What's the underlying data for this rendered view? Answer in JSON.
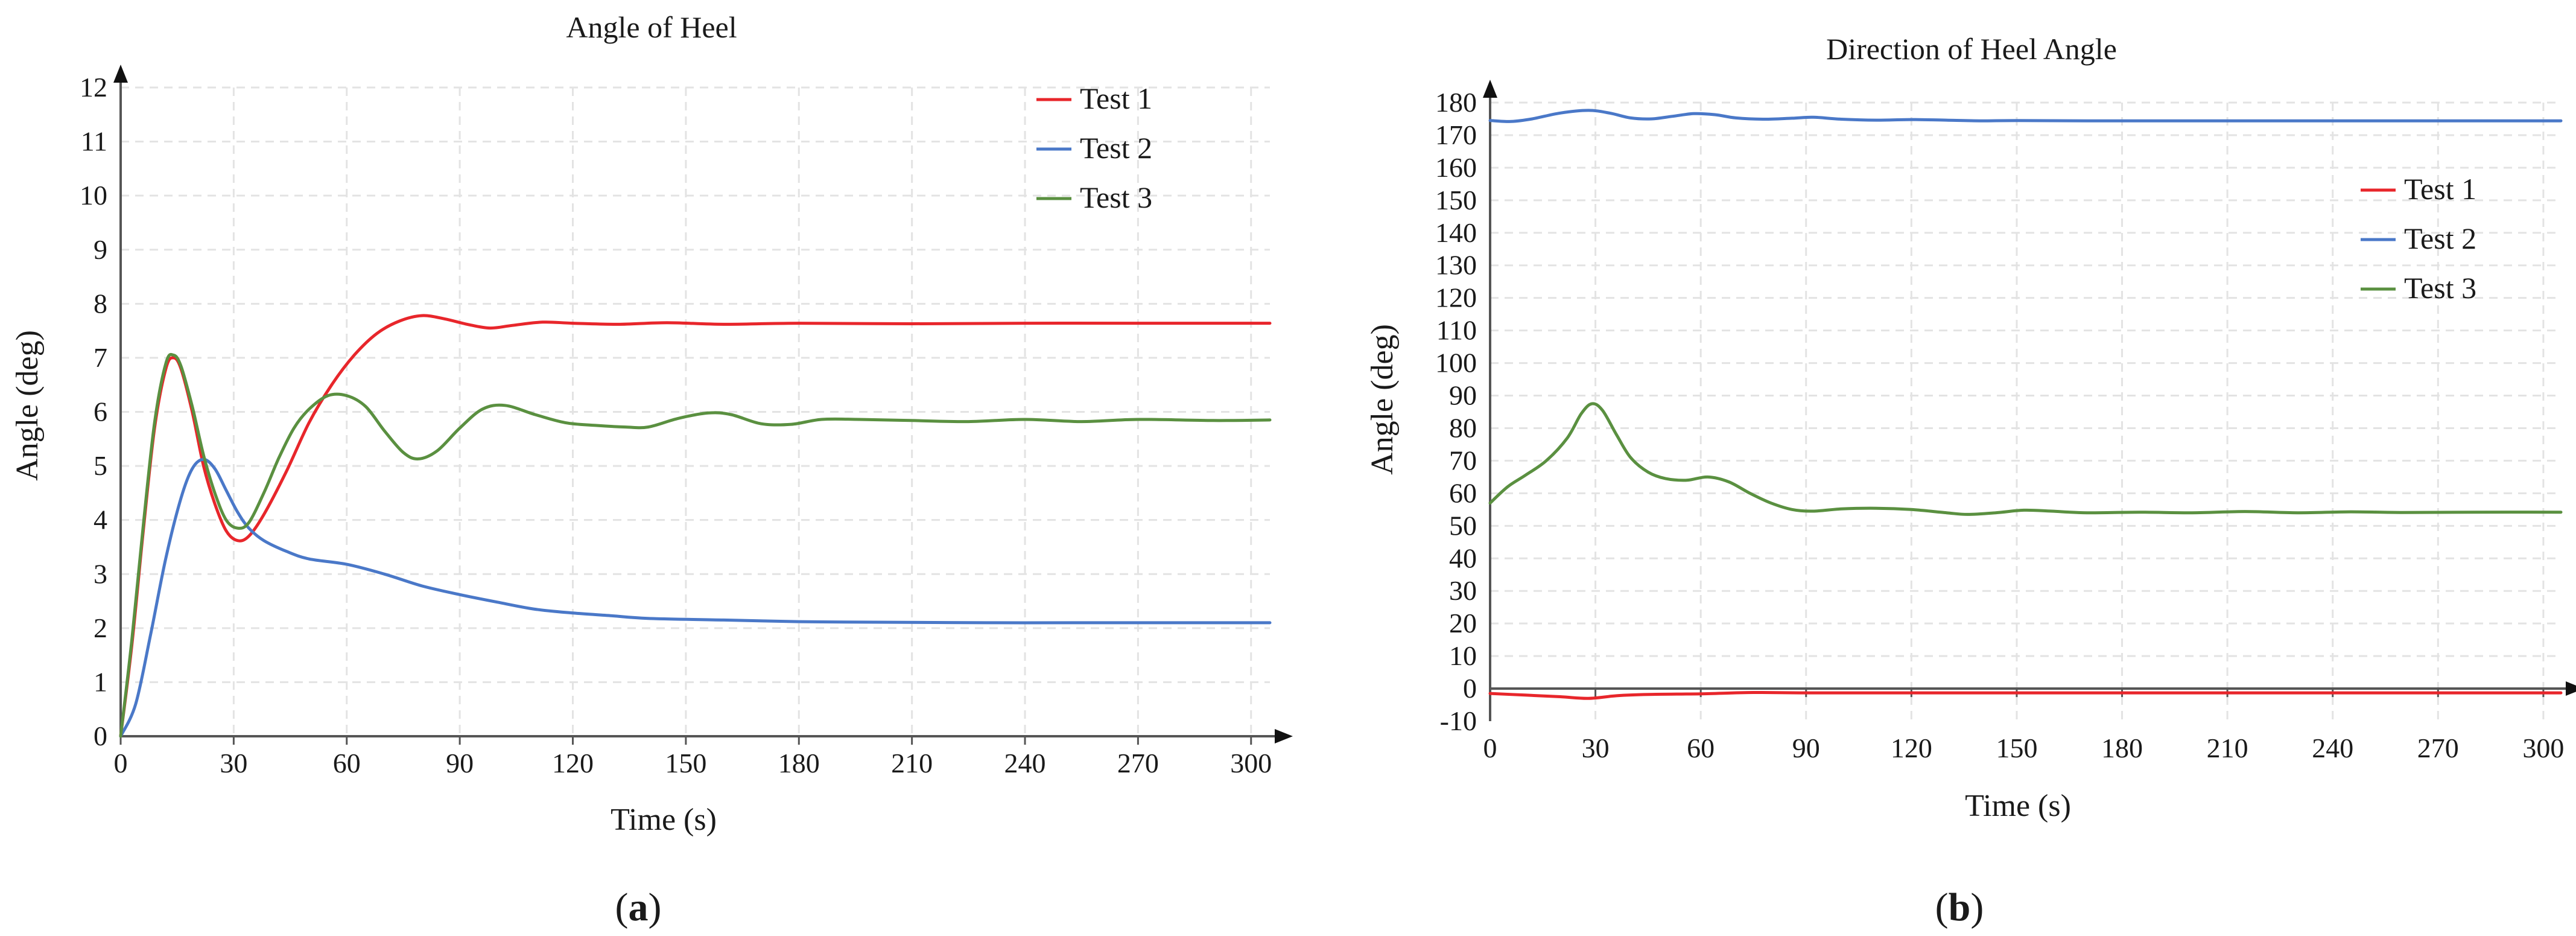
{
  "chart_data": [
    {
      "type": "line",
      "title": "Angle of Heel",
      "xlabel": "Time (s)",
      "ylabel": "Angle (deg)",
      "xlim": [
        0,
        305
      ],
      "ylim": [
        0,
        12
      ],
      "xticks": [
        0,
        30,
        60,
        90,
        120,
        150,
        180,
        210,
        240,
        270,
        300
      ],
      "yticks": [
        0,
        1,
        2,
        3,
        4,
        5,
        6,
        7,
        8,
        9,
        10,
        11,
        12
      ],
      "grid": true,
      "legend_position": "top-right",
      "panel_label": {
        "open": "(",
        "letter": "a",
        "close": ")"
      },
      "series": [
        {
          "name": "Test 1",
          "color": "#e8262b",
          "points": [
            [
              0,
              0
            ],
            [
              3,
              1.7
            ],
            [
              6,
              3.8
            ],
            [
              9,
              5.7
            ],
            [
              12,
              6.8
            ],
            [
              14,
              7.0
            ],
            [
              16,
              6.8
            ],
            [
              19,
              6.0
            ],
            [
              22,
              5.0
            ],
            [
              25,
              4.3
            ],
            [
              28,
              3.8
            ],
            [
              31,
              3.62
            ],
            [
              34,
              3.7
            ],
            [
              38,
              4.1
            ],
            [
              44,
              4.9
            ],
            [
              50,
              5.8
            ],
            [
              56,
              6.5
            ],
            [
              62,
              7.05
            ],
            [
              68,
              7.45
            ],
            [
              74,
              7.68
            ],
            [
              80,
              7.78
            ],
            [
              86,
              7.72
            ],
            [
              92,
              7.62
            ],
            [
              98,
              7.55
            ],
            [
              104,
              7.6
            ],
            [
              112,
              7.66
            ],
            [
              120,
              7.64
            ],
            [
              132,
              7.62
            ],
            [
              145,
              7.65
            ],
            [
              160,
              7.62
            ],
            [
              180,
              7.64
            ],
            [
              210,
              7.63
            ],
            [
              240,
              7.64
            ],
            [
              270,
              7.64
            ],
            [
              305,
              7.64
            ]
          ]
        },
        {
          "name": "Test 2",
          "color": "#4a78c8",
          "points": [
            [
              0,
              0
            ],
            [
              4,
              0.6
            ],
            [
              8,
              1.9
            ],
            [
              12,
              3.3
            ],
            [
              16,
              4.4
            ],
            [
              19,
              4.95
            ],
            [
              22,
              5.12
            ],
            [
              25,
              4.95
            ],
            [
              28,
              4.55
            ],
            [
              31,
              4.15
            ],
            [
              34,
              3.85
            ],
            [
              38,
              3.62
            ],
            [
              44,
              3.42
            ],
            [
              50,
              3.28
            ],
            [
              60,
              3.18
            ],
            [
              70,
              3.0
            ],
            [
              80,
              2.78
            ],
            [
              90,
              2.62
            ],
            [
              100,
              2.48
            ],
            [
              110,
              2.35
            ],
            [
              120,
              2.28
            ],
            [
              130,
              2.23
            ],
            [
              140,
              2.18
            ],
            [
              160,
              2.15
            ],
            [
              180,
              2.12
            ],
            [
              200,
              2.11
            ],
            [
              230,
              2.1
            ],
            [
              260,
              2.1
            ],
            [
              305,
              2.1
            ]
          ]
        },
        {
          "name": "Test 3",
          "color": "#5a9040",
          "points": [
            [
              0,
              0
            ],
            [
              3,
              1.8
            ],
            [
              6,
              3.9
            ],
            [
              9,
              5.8
            ],
            [
              12,
              6.9
            ],
            [
              14,
              7.05
            ],
            [
              16,
              6.85
            ],
            [
              19,
              6.1
            ],
            [
              22,
              5.2
            ],
            [
              25,
              4.5
            ],
            [
              28,
              4.0
            ],
            [
              31,
              3.85
            ],
            [
              34,
              3.95
            ],
            [
              38,
              4.5
            ],
            [
              42,
              5.15
            ],
            [
              46,
              5.7
            ],
            [
              50,
              6.05
            ],
            [
              55,
              6.3
            ],
            [
              60,
              6.3
            ],
            [
              65,
              6.1
            ],
            [
              70,
              5.65
            ],
            [
              75,
              5.25
            ],
            [
              79,
              5.13
            ],
            [
              84,
              5.28
            ],
            [
              90,
              5.7
            ],
            [
              96,
              6.05
            ],
            [
              102,
              6.12
            ],
            [
              110,
              5.95
            ],
            [
              118,
              5.8
            ],
            [
              126,
              5.75
            ],
            [
              134,
              5.72
            ],
            [
              140,
              5.72
            ],
            [
              148,
              5.88
            ],
            [
              156,
              5.98
            ],
            [
              162,
              5.95
            ],
            [
              170,
              5.78
            ],
            [
              178,
              5.77
            ],
            [
              186,
              5.86
            ],
            [
              196,
              5.86
            ],
            [
              210,
              5.84
            ],
            [
              225,
              5.82
            ],
            [
              240,
              5.86
            ],
            [
              255,
              5.82
            ],
            [
              270,
              5.86
            ],
            [
              290,
              5.84
            ],
            [
              305,
              5.85
            ]
          ]
        }
      ]
    },
    {
      "type": "line",
      "title": "Direction of Heel Angle",
      "xlabel": "Time (s)",
      "ylabel": "Angle (deg)",
      "xlim": [
        0,
        305
      ],
      "ylim": [
        -10,
        180
      ],
      "xticks": [
        0,
        30,
        60,
        90,
        120,
        150,
        180,
        210,
        240,
        270,
        300
      ],
      "yticks": [
        -10,
        0,
        10,
        20,
        30,
        40,
        50,
        60,
        70,
        80,
        90,
        100,
        110,
        120,
        130,
        140,
        150,
        160,
        170,
        180
      ],
      "grid": true,
      "legend_position": "right",
      "panel_label": {
        "open": "(",
        "letter": "b",
        "close": ")"
      },
      "series": [
        {
          "name": "Test 1",
          "color": "#e8262b",
          "points": [
            [
              0,
              -1.5
            ],
            [
              10,
              -2
            ],
            [
              20,
              -2.5
            ],
            [
              28,
              -3
            ],
            [
              36,
              -2.2
            ],
            [
              45,
              -1.8
            ],
            [
              60,
              -1.6
            ],
            [
              75,
              -1.2
            ],
            [
              90,
              -1.3
            ],
            [
              120,
              -1.3
            ],
            [
              150,
              -1.3
            ],
            [
              200,
              -1.3
            ],
            [
              250,
              -1.3
            ],
            [
              305,
              -1.3
            ]
          ]
        },
        {
          "name": "Test 2",
          "color": "#4a78c8",
          "points": [
            [
              0,
              174.5
            ],
            [
              6,
              174.2
            ],
            [
              12,
              175
            ],
            [
              20,
              176.8
            ],
            [
              28,
              177.6
            ],
            [
              34,
              176.8
            ],
            [
              40,
              175.3
            ],
            [
              46,
              175
            ],
            [
              52,
              175.8
            ],
            [
              58,
              176.6
            ],
            [
              64,
              176.3
            ],
            [
              70,
              175.3
            ],
            [
              78,
              174.9
            ],
            [
              86,
              175.2
            ],
            [
              92,
              175.5
            ],
            [
              100,
              174.9
            ],
            [
              110,
              174.6
            ],
            [
              120,
              174.8
            ],
            [
              130,
              174.6
            ],
            [
              140,
              174.4
            ],
            [
              150,
              174.5
            ],
            [
              170,
              174.4
            ],
            [
              200,
              174.4
            ],
            [
              240,
              174.4
            ],
            [
              305,
              174.4
            ]
          ]
        },
        {
          "name": "Test 3",
          "color": "#5a9040",
          "points": [
            [
              0,
              57
            ],
            [
              5,
              62
            ],
            [
              10,
              65.5
            ],
            [
              16,
              70
            ],
            [
              22,
              77
            ],
            [
              26,
              84.5
            ],
            [
              29,
              87.5
            ],
            [
              32,
              85.5
            ],
            [
              36,
              78
            ],
            [
              40,
              71
            ],
            [
              45,
              66.5
            ],
            [
              50,
              64.5
            ],
            [
              56,
              64
            ],
            [
              62,
              65
            ],
            [
              68,
              63.5
            ],
            [
              74,
              60
            ],
            [
              80,
              57
            ],
            [
              86,
              55
            ],
            [
              92,
              54.5
            ],
            [
              100,
              55.2
            ],
            [
              110,
              55.4
            ],
            [
              120,
              55
            ],
            [
              130,
              54
            ],
            [
              136,
              53.5
            ],
            [
              144,
              54
            ],
            [
              152,
              54.8
            ],
            [
              160,
              54.5
            ],
            [
              170,
              54
            ],
            [
              185,
              54.2
            ],
            [
              200,
              54
            ],
            [
              215,
              54.4
            ],
            [
              230,
              54
            ],
            [
              245,
              54.3
            ],
            [
              260,
              54.1
            ],
            [
              280,
              54.2
            ],
            [
              305,
              54.2
            ]
          ]
        }
      ]
    }
  ]
}
